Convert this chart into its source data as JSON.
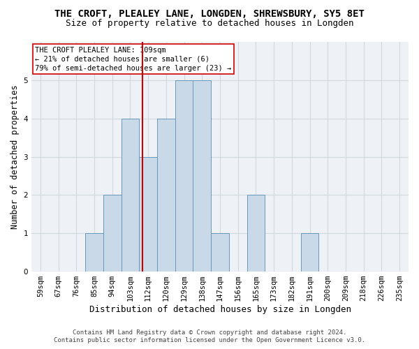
{
  "title": "THE CROFT, PLEALEY LANE, LONGDEN, SHREWSBURY, SY5 8ET",
  "subtitle": "Size of property relative to detached houses in Longden",
  "xlabel": "Distribution of detached houses by size in Longden",
  "ylabel": "Number of detached properties",
  "categories": [
    "59sqm",
    "67sqm",
    "76sqm",
    "85sqm",
    "94sqm",
    "103sqm",
    "112sqm",
    "120sqm",
    "129sqm",
    "138sqm",
    "147sqm",
    "156sqm",
    "165sqm",
    "173sqm",
    "182sqm",
    "191sqm",
    "200sqm",
    "209sqm",
    "218sqm",
    "226sqm",
    "235sqm"
  ],
  "values": [
    0,
    0,
    0,
    1,
    2,
    4,
    3,
    4,
    5,
    5,
    1,
    0,
    2,
    0,
    0,
    1,
    0,
    0,
    0,
    0,
    0
  ],
  "bar_color": "#c9d9e8",
  "bar_edgecolor": "#6699bb",
  "property_label": "THE CROFT PLEALEY LANE: 109sqm",
  "annotation_line1": "← 21% of detached houses are smaller (6)",
  "annotation_line2": "79% of semi-detached houses are larger (23) →",
  "vline_color": "#cc0000",
  "ylim": [
    0,
    6
  ],
  "yticks": [
    0,
    1,
    2,
    3,
    4,
    5,
    6
  ],
  "grid_color": "#d0d8e0",
  "background_color": "#eef2f7",
  "annotation_box_color": "#ffffff",
  "annotation_box_edgecolor": "#cc0000",
  "footer_line1": "Contains HM Land Registry data © Crown copyright and database right 2024.",
  "footer_line2": "Contains public sector information licensed under the Open Government Licence v3.0.",
  "title_fontsize": 10,
  "subtitle_fontsize": 9,
  "xlabel_fontsize": 9,
  "ylabel_fontsize": 8.5,
  "tick_fontsize": 7.5,
  "annotation_fontsize": 7.5,
  "footer_fontsize": 6.5
}
